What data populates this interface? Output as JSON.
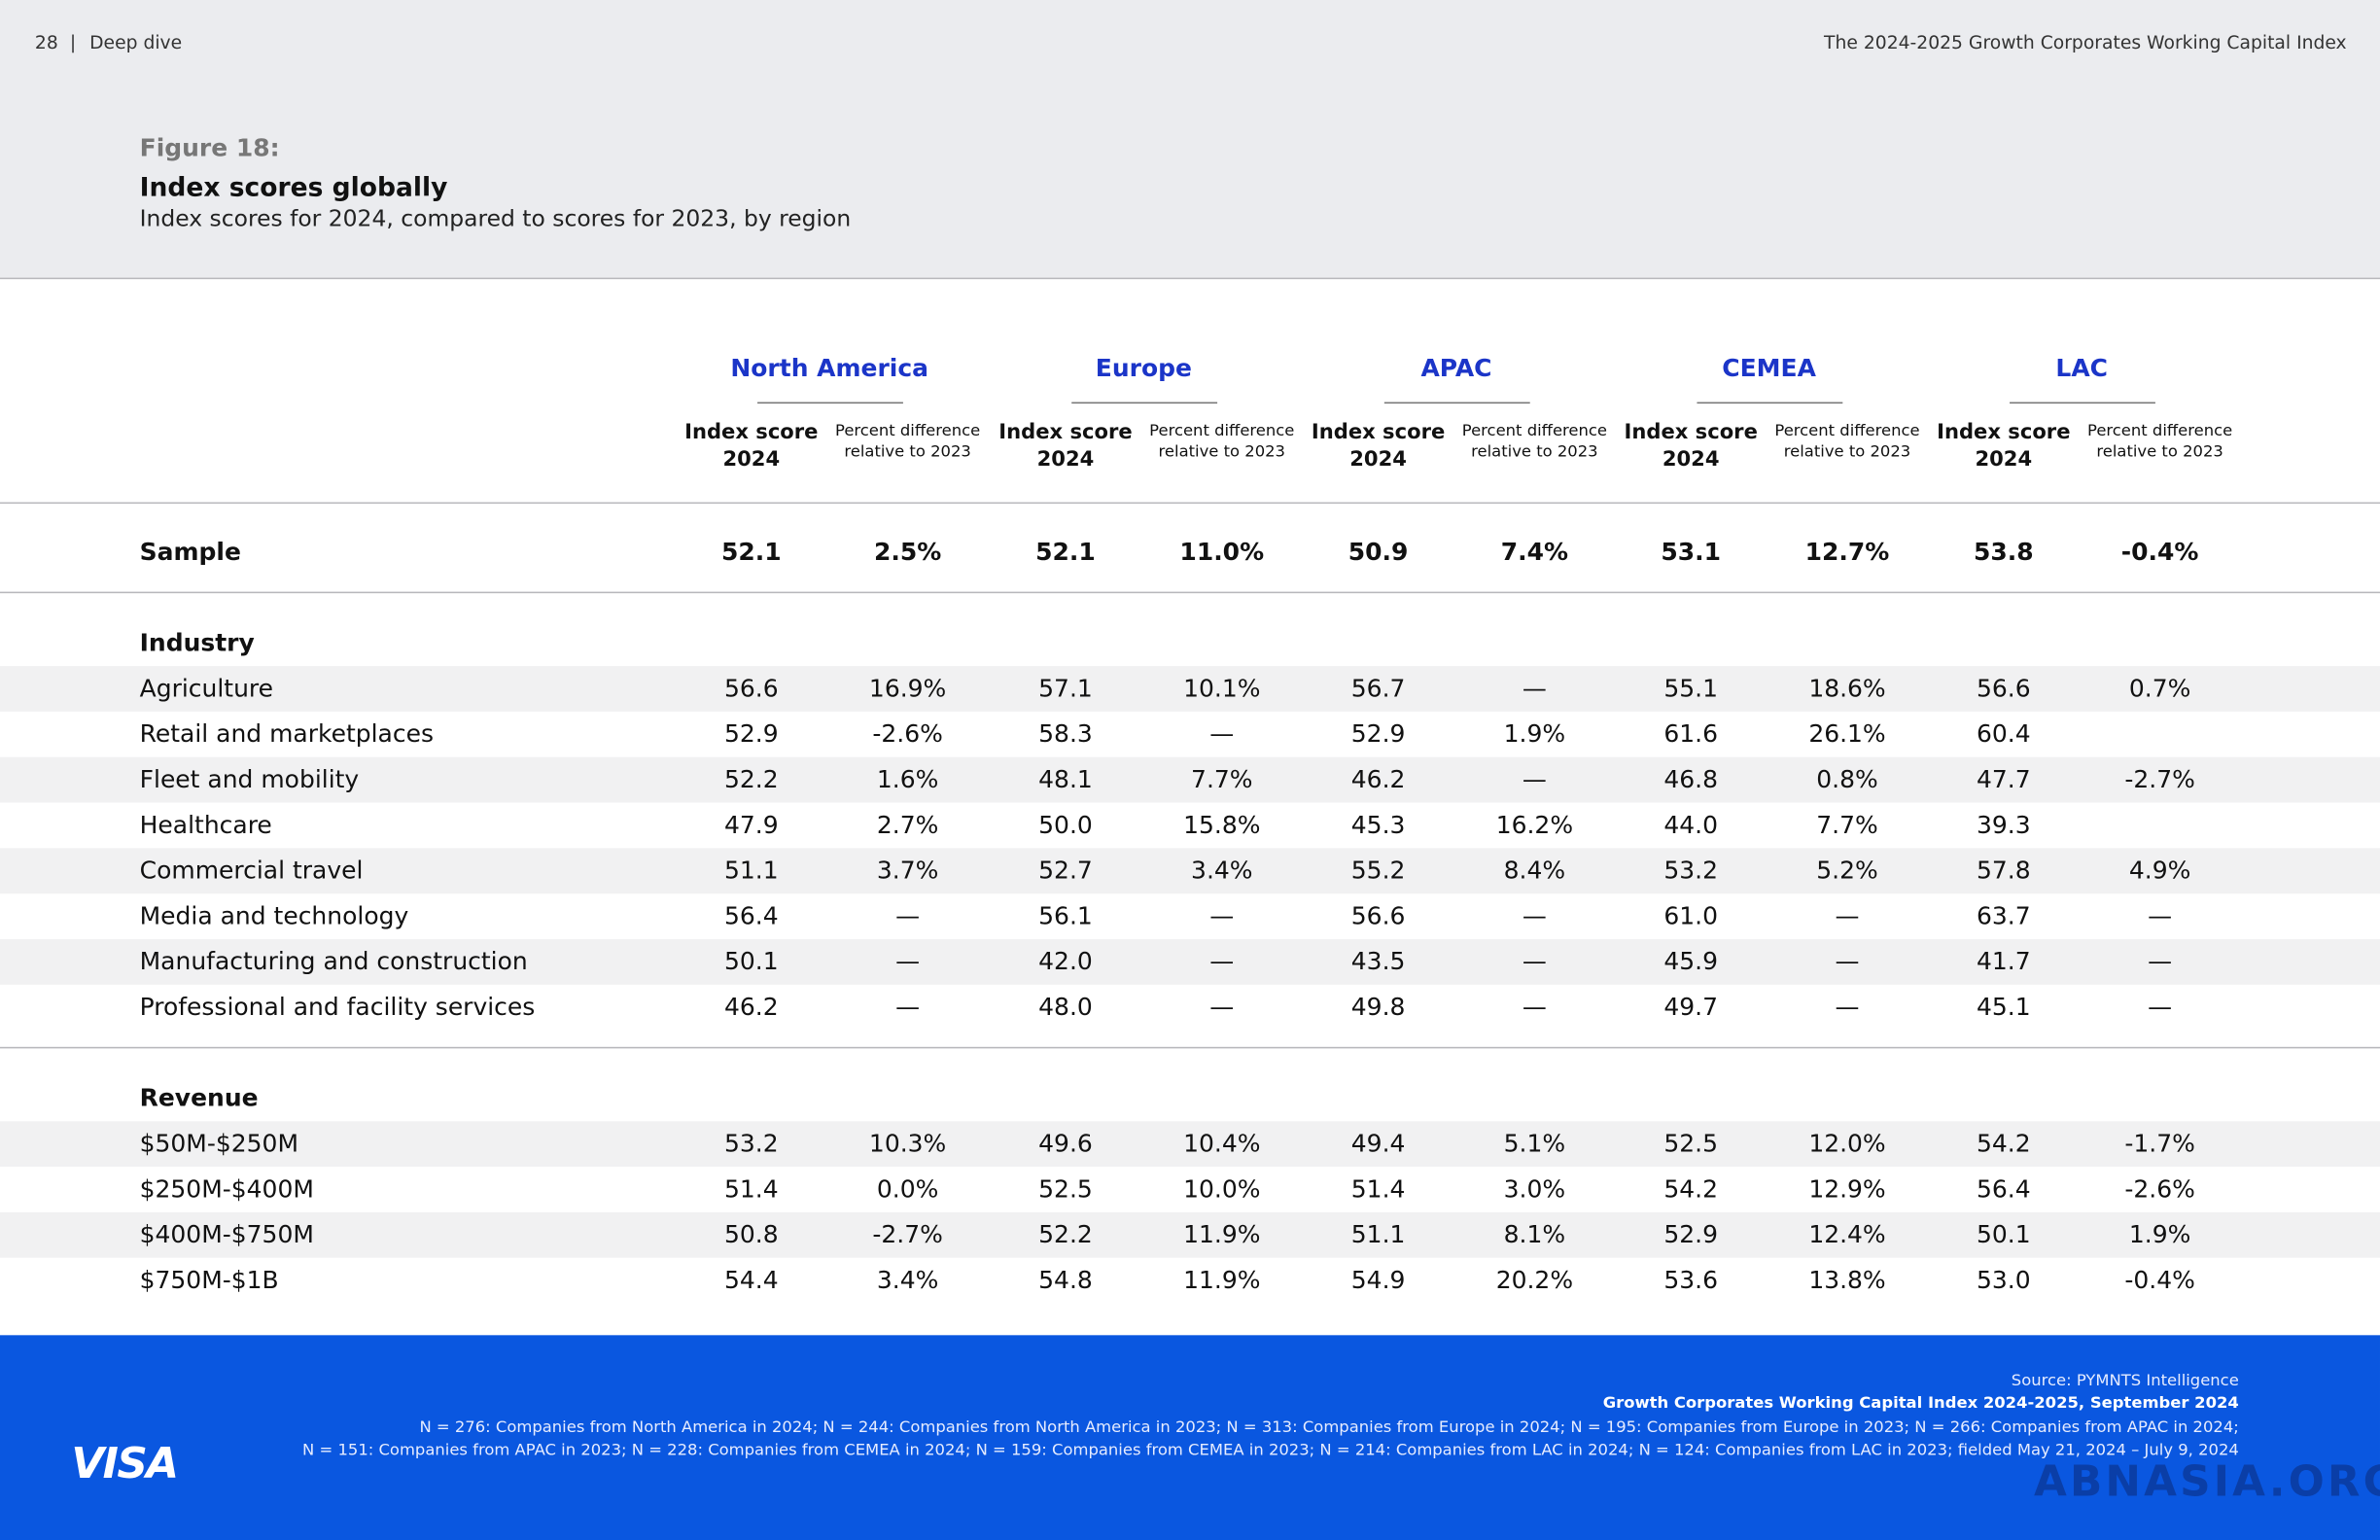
{
  "header": {
    "page": "28",
    "section": "Deep dive",
    "publication": "The 2024-2025 Growth Corporates Working Capital Index"
  },
  "figure": {
    "label": "Figure 18:",
    "title": "Index scores globally",
    "subtitle": "Index scores for 2024, compared to scores for 2023, by region"
  },
  "table": {
    "regions": [
      "North America",
      "Europe",
      "APAC",
      "CEMEA",
      "LAC"
    ],
    "column_headers": [
      "Index score 2024",
      "Percent difference relative to 2023"
    ],
    "sections": [
      {
        "rows": [
          {
            "label": "Sample",
            "values": [
              "52.1",
              "2.5%",
              "52.1",
              "11.0%",
              "50.9",
              "7.4%",
              "53.1",
              "12.7%",
              "53.8",
              "-0.4%"
            ]
          }
        ]
      },
      {
        "heading": "Industry",
        "rows": [
          {
            "label": "Agriculture",
            "values": [
              "56.6",
              "16.9%",
              "57.1",
              "10.1%",
              "56.7",
              "—",
              "55.1",
              "18.6%",
              "56.6",
              "0.7%"
            ]
          },
          {
            "label": "Retail and marketplaces",
            "values": [
              "52.9",
              "-2.6%",
              "58.3",
              "—",
              "52.9",
              "1.9%",
              "61.6",
              "26.1%",
              "60.4",
              null
            ]
          },
          {
            "label": "Fleet and mobility",
            "values": [
              "52.2",
              "1.6%",
              "48.1",
              "7.7%",
              "46.2",
              "—",
              "46.8",
              "0.8%",
              "47.7",
              "-2.7%"
            ]
          },
          {
            "label": "Healthcare",
            "values": [
              "47.9",
              "2.7%",
              "50.0",
              "15.8%",
              "45.3",
              "16.2%",
              "44.0",
              "7.7%",
              "39.3",
              null
            ]
          },
          {
            "label": "Commercial travel",
            "values": [
              "51.1",
              "3.7%",
              "52.7",
              "3.4%",
              "55.2",
              "8.4%",
              "53.2",
              "5.2%",
              "57.8",
              "4.9%"
            ]
          },
          {
            "label": "Media and technology",
            "values": [
              "56.4",
              "—",
              "56.1",
              "—",
              "56.6",
              "—",
              "61.0",
              "—",
              "63.7",
              "—"
            ]
          },
          {
            "label": "Manufacturing and construction",
            "values": [
              "50.1",
              "—",
              "42.0",
              "—",
              "43.5",
              "—",
              "45.9",
              "—",
              "41.7",
              "—"
            ]
          },
          {
            "label": "Professional and facility services",
            "values": [
              "46.2",
              "—",
              "48.0",
              "—",
              "49.8",
              "—",
              "49.7",
              "—",
              "45.1",
              "—"
            ]
          }
        ]
      },
      {
        "heading": "Revenue",
        "rows": [
          {
            "label": "$50M-$250M",
            "values": [
              "53.2",
              "10.3%",
              "49.6",
              "10.4%",
              "49.4",
              "5.1%",
              "52.5",
              "12.0%",
              "54.2",
              "-1.7%"
            ]
          },
          {
            "label": "$250M-$400M",
            "values": [
              "51.4",
              "0.0%",
              "52.5",
              "10.0%",
              "51.4",
              "3.0%",
              "54.2",
              "12.9%",
              "56.4",
              "-2.6%"
            ]
          },
          {
            "label": "$400M-$750M",
            "values": [
              "50.8",
              "-2.7%",
              "52.2",
              "11.9%",
              "51.1",
              "8.1%",
              "52.9",
              "12.4%",
              "50.1",
              "1.9%"
            ]
          },
          {
            "label": "$750M-$1B",
            "values": [
              "54.4",
              "3.4%",
              "54.8",
              "11.9%",
              "54.9",
              "20.2%",
              "53.6",
              "13.8%",
              "53.0",
              "-0.4%"
            ]
          }
        ]
      }
    ]
  },
  "footer": {
    "brand": "VISA",
    "source": "Source: PYMNTS Intelligence",
    "report": "Growth Corporates Working Capital Index 2024-2025, September 2024",
    "notes": [
      "N = 276: Companies from North America in 2024; N = 244: Companies from North America in 2023; N = 313: Companies from Europe in 2024; N = 195: Companies from Europe in 2023; N = 266: Companies from APAC in 2024;",
      "N = 151: Companies from APAC in 2023; N = 228: Companies from CEMEA in 2024; N = 159: Companies from CEMEA in 2023; N = 214: Companies from LAC in 2024; N = 124: Companies from LAC in 2023; fielded May 21, 2024 – July 9, 2024"
    ],
    "watermark": "ABNASIA.ORG"
  }
}
